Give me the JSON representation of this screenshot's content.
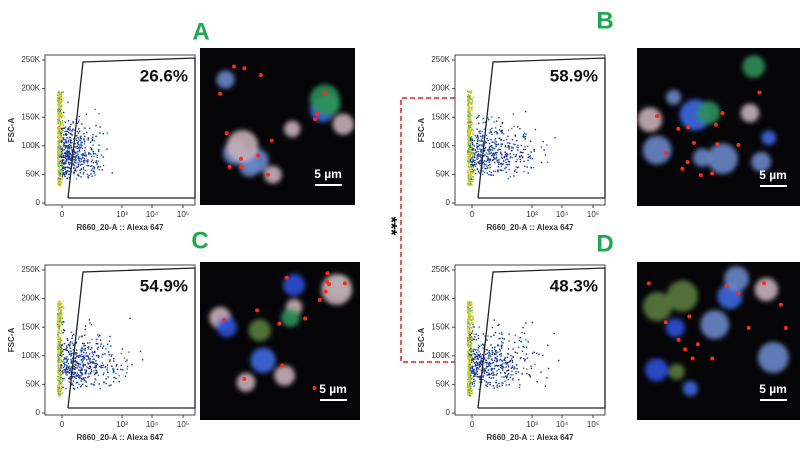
{
  "figure": {
    "y_axis_label": "FSC-A",
    "x_axis_label": "R660_20-A :: Alexa 647",
    "y_tick_labels": [
      "250K",
      "200K",
      "150K",
      "100K",
      "50K",
      "0"
    ],
    "x_tick_labels": [
      "0",
      "10³",
      "10⁴",
      "10⁵"
    ],
    "significance": "***",
    "panels": [
      {
        "label": "A",
        "percent": "26.6%",
        "scale_bar": "5 µm"
      },
      {
        "label": "B",
        "percent": "58.9%",
        "scale_bar": "5 µm"
      },
      {
        "label": "C",
        "percent": "54.9%",
        "scale_bar": "5 µm"
      },
      {
        "label": "D",
        "percent": "48.3%",
        "scale_bar": "5 µm"
      }
    ]
  }
}
